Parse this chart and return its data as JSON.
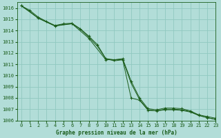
{
  "background_color": "#b2ddd8",
  "grid_color": "#90c8c0",
  "line_color": "#1a5c1a",
  "title": "Graphe pression niveau de la mer (hPa)",
  "xlim": [
    -0.5,
    23
  ],
  "ylim": [
    1006.0,
    1016.5
  ],
  "yticks": [
    1006,
    1007,
    1008,
    1009,
    1010,
    1011,
    1012,
    1013,
    1014,
    1015,
    1016
  ],
  "xticks": [
    0,
    1,
    2,
    3,
    4,
    5,
    6,
    7,
    8,
    9,
    10,
    11,
    12,
    13,
    14,
    15,
    16,
    17,
    18,
    19,
    20,
    21,
    22,
    23
  ],
  "series": [
    {
      "x": [
        0,
        1,
        2,
        3,
        4,
        5,
        6,
        7,
        8,
        9,
        10,
        11,
        12,
        13,
        14,
        15,
        16,
        17,
        18,
        19,
        20,
        21,
        22,
        23
      ],
      "y": [
        1016.2,
        1015.8,
        1015.2,
        1014.8,
        1014.45,
        1014.6,
        1014.65,
        1014.15,
        1013.5,
        1012.75,
        1011.5,
        1011.4,
        1011.5,
        1009.5,
        1008.0,
        1007.05,
        1006.95,
        1007.1,
        1007.1,
        1007.05,
        1006.85,
        1006.5,
        1006.35,
        1006.2
      ],
      "marker": "+"
    },
    {
      "x": [
        0,
        1,
        2,
        3,
        4,
        5,
        6,
        7,
        8,
        9,
        10,
        11,
        12,
        13,
        14,
        15,
        16,
        17,
        18,
        19,
        20,
        21,
        22,
        23
      ],
      "y": [
        1016.2,
        1015.7,
        1015.1,
        1014.75,
        1014.4,
        1014.55,
        1014.6,
        1014.1,
        1013.4,
        1012.6,
        1011.5,
        1011.3,
        1011.4,
        1009.3,
        1007.85,
        1006.95,
        1006.85,
        1007.0,
        1007.0,
        1006.95,
        1006.8,
        1006.45,
        1006.25,
        1006.1
      ],
      "marker": null
    },
    {
      "x": [
        0,
        2,
        4,
        6,
        8,
        10,
        12,
        13,
        14,
        15,
        16,
        17,
        18,
        19,
        20,
        21,
        22,
        23
      ],
      "y": [
        1016.2,
        1015.1,
        1014.4,
        1014.6,
        1013.3,
        1011.4,
        1011.4,
        1008.0,
        1007.8,
        1006.9,
        1006.85,
        1006.95,
        1006.95,
        1006.9,
        1006.75,
        1006.45,
        1006.25,
        1006.1
      ],
      "marker": "+"
    }
  ],
  "title_fontsize": 5.5,
  "tick_fontsize": 5,
  "linewidth": 0.7,
  "markersize": 3.0
}
